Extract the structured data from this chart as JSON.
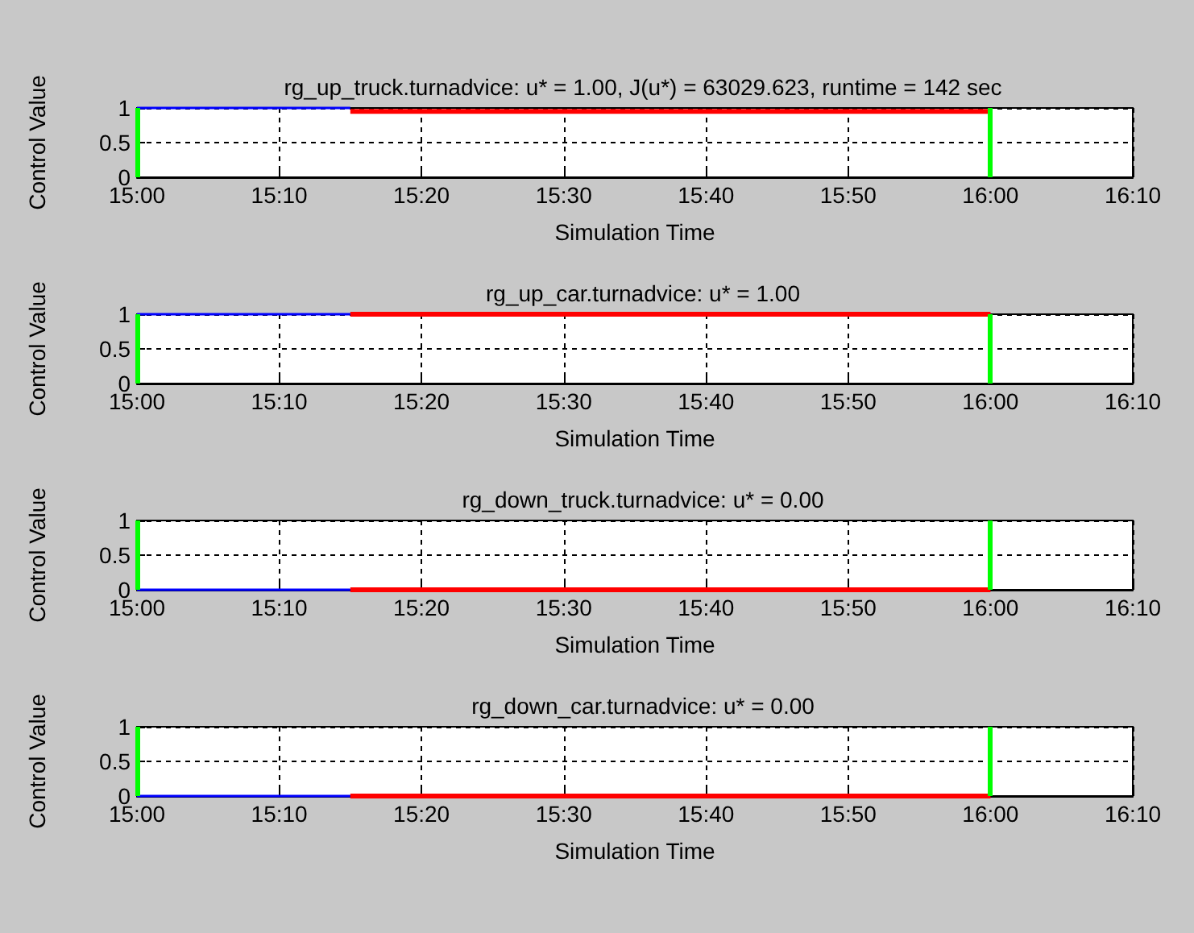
{
  "chart_data": [
    {
      "type": "line",
      "title": "rg_up_truck.turnadvice: u* = 1.00, J(u*) = 63029.623, runtime = 142 sec",
      "xlabel": "Simulation Time",
      "ylabel": "Control Value",
      "series": [
        {
          "color": "#0000ff",
          "x": [
            15,
            15.25
          ],
          "values": [
            1,
            1
          ]
        },
        {
          "color": "#ff0000",
          "x": [
            15.25,
            16
          ],
          "values": [
            0.95,
            0.95
          ]
        }
      ],
      "ref_lines": [
        {
          "axis": "x",
          "value": 15,
          "label": null,
          "color": "#00ff00"
        },
        {
          "axis": "x",
          "value": 16,
          "label": null,
          "color": "#00ff00"
        }
      ],
      "xlim": [
        15,
        16.1667
      ],
      "xticks": [
        {
          "value": 15,
          "label": "15:00"
        },
        {
          "value": 15.1667,
          "label": "15:10"
        },
        {
          "value": 15.3333,
          "label": "15:20"
        },
        {
          "value": 15.5,
          "label": "15:30"
        },
        {
          "value": 15.6667,
          "label": "15:40"
        },
        {
          "value": 15.8333,
          "label": "15:50"
        },
        {
          "value": 16,
          "label": "16:00"
        },
        {
          "value": 16.1667,
          "label": "16:10"
        }
      ],
      "ylim": [
        0,
        1
      ],
      "yticks": [
        0,
        0.5,
        1
      ],
      "grid": true
    },
    {
      "type": "line",
      "title": "rg_up_car.turnadvice: u* = 1.00",
      "xlabel": "Simulation Time",
      "ylabel": "Control Value",
      "series": [
        {
          "color": "#0000ff",
          "x": [
            15,
            15.25
          ],
          "values": [
            1,
            1
          ]
        },
        {
          "color": "#ff0000",
          "x": [
            15.25,
            16
          ],
          "values": [
            1,
            1
          ]
        }
      ],
      "ref_lines": [
        {
          "axis": "x",
          "value": 15,
          "label": null,
          "color": "#00ff00"
        },
        {
          "axis": "x",
          "value": 16,
          "label": null,
          "color": "#00ff00"
        }
      ],
      "xlim": [
        15,
        16.1667
      ],
      "xticks": [
        {
          "value": 15,
          "label": "15:00"
        },
        {
          "value": 15.1667,
          "label": "15:10"
        },
        {
          "value": 15.3333,
          "label": "15:20"
        },
        {
          "value": 15.5,
          "label": "15:30"
        },
        {
          "value": 15.6667,
          "label": "15:40"
        },
        {
          "value": 15.8333,
          "label": "15:50"
        },
        {
          "value": 16,
          "label": "16:00"
        },
        {
          "value": 16.1667,
          "label": "16:10"
        }
      ],
      "ylim": [
        0,
        1
      ],
      "yticks": [
        0,
        0.5,
        1
      ],
      "grid": true
    },
    {
      "type": "line",
      "title": "rg_down_truck.turnadvice: u* = 0.00",
      "xlabel": "Simulation Time",
      "ylabel": "Control Value",
      "series": [
        {
          "color": "#0000ff",
          "x": [
            15,
            15.25
          ],
          "values": [
            0,
            0
          ]
        },
        {
          "color": "#ff0000",
          "x": [
            15.25,
            16
          ],
          "values": [
            0,
            0
          ]
        }
      ],
      "ref_lines": [
        {
          "axis": "x",
          "value": 15,
          "label": null,
          "color": "#00ff00"
        },
        {
          "axis": "x",
          "value": 16,
          "label": null,
          "color": "#00ff00"
        }
      ],
      "xlim": [
        15,
        16.1667
      ],
      "xticks": [
        {
          "value": 15,
          "label": "15:00"
        },
        {
          "value": 15.1667,
          "label": "15:10"
        },
        {
          "value": 15.3333,
          "label": "15:20"
        },
        {
          "value": 15.5,
          "label": "15:30"
        },
        {
          "value": 15.6667,
          "label": "15:40"
        },
        {
          "value": 15.8333,
          "label": "15:50"
        },
        {
          "value": 16,
          "label": "16:00"
        },
        {
          "value": 16.1667,
          "label": "16:10"
        }
      ],
      "ylim": [
        0,
        1
      ],
      "yticks": [
        0,
        0.5,
        1
      ],
      "grid": true
    },
    {
      "type": "line",
      "title": "rg_down_car.turnadvice: u* = 0.00",
      "xlabel": "Simulation Time",
      "ylabel": "Control Value",
      "series": [
        {
          "color": "#0000ff",
          "x": [
            15,
            15.25
          ],
          "values": [
            0,
            0
          ]
        },
        {
          "color": "#ff0000",
          "x": [
            15.25,
            16
          ],
          "values": [
            0,
            0
          ]
        }
      ],
      "ref_lines": [
        {
          "axis": "x",
          "value": 15,
          "label": null,
          "color": "#00ff00"
        },
        {
          "axis": "x",
          "value": 16,
          "label": null,
          "color": "#00ff00"
        }
      ],
      "xlim": [
        15,
        16.1667
      ],
      "xticks": [
        {
          "value": 15,
          "label": "15:00"
        },
        {
          "value": 15.1667,
          "label": "15:10"
        },
        {
          "value": 15.3333,
          "label": "15:20"
        },
        {
          "value": 15.5,
          "label": "15:30"
        },
        {
          "value": 15.6667,
          "label": "15:40"
        },
        {
          "value": 15.8333,
          "label": "15:50"
        },
        {
          "value": 16,
          "label": "16:00"
        },
        {
          "value": 16.1667,
          "label": "16:10"
        }
      ],
      "ylim": [
        0,
        1
      ],
      "yticks": [
        0,
        0.5,
        1
      ],
      "grid": true
    }
  ]
}
